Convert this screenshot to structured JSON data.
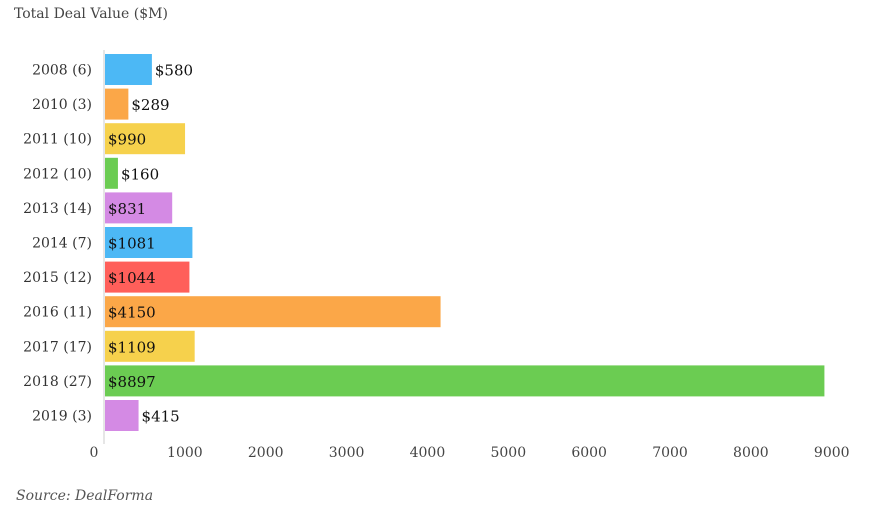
{
  "chart_data": {
    "type": "bar",
    "orientation": "horizontal",
    "title": "Total Deal Value ($M)",
    "source": "Source: DealForma",
    "xlim": [
      0,
      9300
    ],
    "x_ticks": [
      0,
      1000,
      2000,
      3000,
      4000,
      5000,
      6000,
      7000,
      8000,
      9000
    ],
    "grid": false,
    "legend": "none",
    "categories": [
      "2008 (6)",
      "2010 (3)",
      "2011 (10)",
      "2012 (10)",
      "2013 (14)",
      "2014 (7)",
      "2015 (12)",
      "2016 (11)",
      "2017 (17)",
      "2018 (27)",
      "2019 (3)"
    ],
    "values": [
      580,
      289,
      990,
      160,
      831,
      1081,
      1044,
      4150,
      1109,
      8897,
      415
    ],
    "value_labels": [
      "$580",
      "$289",
      "$990",
      "$160",
      "$831",
      "$1081",
      "$1044",
      "$4150",
      "$1109",
      "$8897",
      "$415"
    ],
    "colors": [
      "#4cb8f5",
      "#fba748",
      "#f6d14c",
      "#6bcc52",
      "#d48ae4",
      "#4cb8f5",
      "#ff5f5a",
      "#fba748",
      "#f6d14c",
      "#6bcc52",
      "#d48ae4"
    ]
  }
}
